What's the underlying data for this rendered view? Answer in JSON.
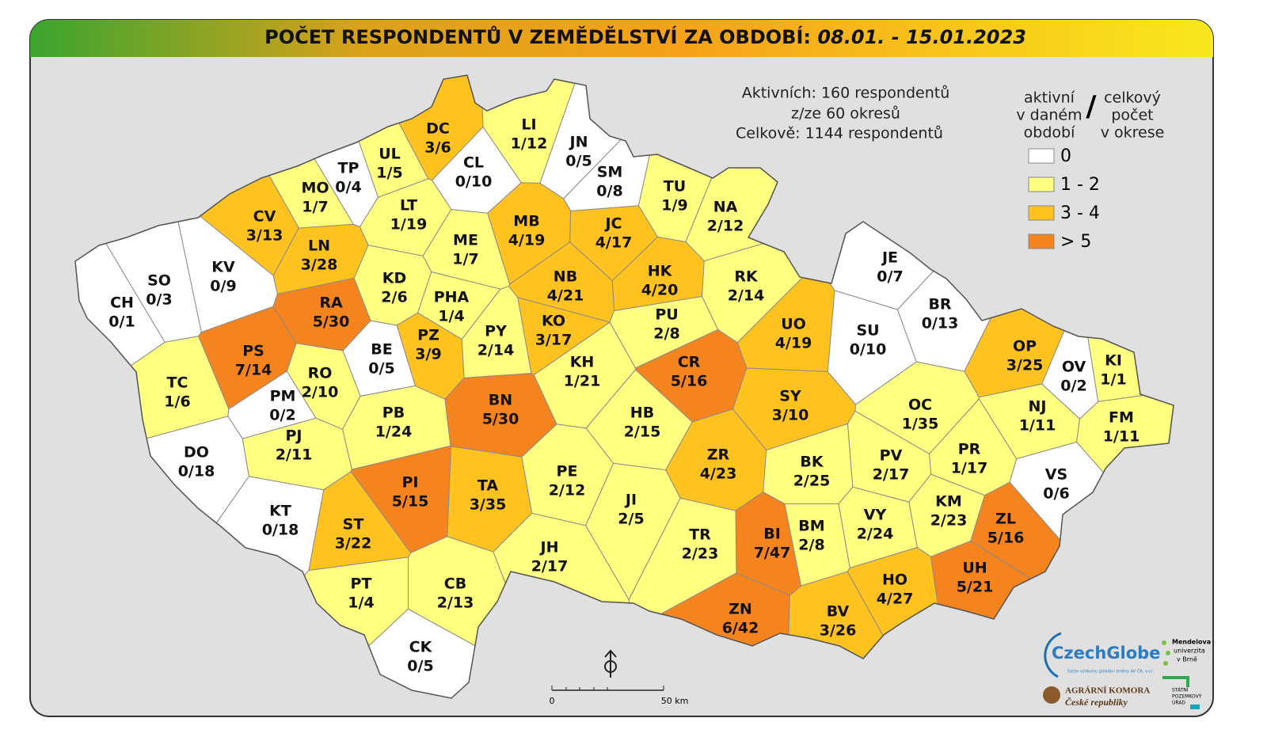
{
  "header": {
    "title": "POČET RESPONDENTŮ V ZEMĚDĚLSTVÍ ZA OBDOBÍ:",
    "period": "08.01. - 15.01.2023"
  },
  "summary": [
    "Aktivních: 160 respondentů",
    "z/ze 60 okresů",
    "Celkově: 1144 respondentů"
  ],
  "legend": {
    "active_heading": [
      "aktivní",
      "v daném",
      "období"
    ],
    "separator": "/",
    "total_heading": [
      "celkový",
      "počet",
      "v okrese"
    ],
    "items": [
      {
        "label": "0",
        "color": "#ffffff"
      },
      {
        "label": "1 - 2",
        "color": "#ffff80"
      },
      {
        "label": "3 - 4",
        "color": "#ffc21f"
      },
      {
        "label": "> 5",
        "color": "#f5841f"
      }
    ]
  },
  "districts": [
    {
      "code": "DC",
      "label": "3/6",
      "color": "#ffc21f"
    },
    {
      "code": "LI",
      "label": "1/12",
      "color": "#ffff80"
    },
    {
      "code": "JN",
      "label": "0/5",
      "color": "#ffffff"
    },
    {
      "code": "CL",
      "label": "0/10",
      "color": "#ffffff"
    },
    {
      "code": "UL",
      "label": "1/5",
      "color": "#ffff80"
    },
    {
      "code": "TP",
      "label": "0/4",
      "color": "#ffffff"
    },
    {
      "code": "MO",
      "label": "1/7",
      "color": "#ffff80"
    },
    {
      "code": "SM",
      "label": "0/8",
      "color": "#ffffff"
    },
    {
      "code": "TU",
      "label": "1/9",
      "color": "#ffff80"
    },
    {
      "code": "NA",
      "label": "2/12",
      "color": "#ffff80"
    },
    {
      "code": "CV",
      "label": "3/13",
      "color": "#ffc21f"
    },
    {
      "code": "LT",
      "label": "1/19",
      "color": "#ffff80"
    },
    {
      "code": "MB",
      "label": "4/19",
      "color": "#ffc21f"
    },
    {
      "code": "JC",
      "label": "4/17",
      "color": "#ffc21f"
    },
    {
      "code": "ME",
      "label": "1/7",
      "color": "#ffff80"
    },
    {
      "code": "LN",
      "label": "3/28",
      "color": "#ffc21f"
    },
    {
      "code": "KV",
      "label": "0/9",
      "color": "#ffffff"
    },
    {
      "code": "SO",
      "label": "0/3",
      "color": "#ffffff"
    },
    {
      "code": "CH",
      "label": "0/1",
      "color": "#ffffff"
    },
    {
      "code": "KD",
      "label": "2/6",
      "color": "#ffff80"
    },
    {
      "code": "PHA",
      "label": "1/4",
      "color": "#ffff80"
    },
    {
      "code": "NB",
      "label": "4/21",
      "color": "#ffc21f"
    },
    {
      "code": "HK",
      "label": "4/20",
      "color": "#ffc21f"
    },
    {
      "code": "RK",
      "label": "2/14",
      "color": "#ffff80"
    },
    {
      "code": "JE",
      "label": "0/7",
      "color": "#ffffff"
    },
    {
      "code": "RA",
      "label": "5/30",
      "color": "#f5841f"
    },
    {
      "code": "KO",
      "label": "3/17",
      "color": "#ffc21f"
    },
    {
      "code": "PU",
      "label": "2/8",
      "color": "#ffff80"
    },
    {
      "code": "UO",
      "label": "4/19",
      "color": "#ffc21f"
    },
    {
      "code": "SU",
      "label": "0/10",
      "color": "#ffffff"
    },
    {
      "code": "BR",
      "label": "0/13",
      "color": "#ffffff"
    },
    {
      "code": "PZ",
      "label": "3/9",
      "color": "#ffc21f"
    },
    {
      "code": "PY",
      "label": "2/14",
      "color": "#ffff80"
    },
    {
      "code": "BE",
      "label": "0/5",
      "color": "#ffffff"
    },
    {
      "code": "PS",
      "label": "7/14",
      "color": "#f5841f"
    },
    {
      "code": "OP",
      "label": "3/25",
      "color": "#ffc21f"
    },
    {
      "code": "KI",
      "label": "1/1",
      "color": "#ffff80"
    },
    {
      "code": "OV",
      "label": "0/2",
      "color": "#ffffff"
    },
    {
      "code": "TC",
      "label": "1/6",
      "color": "#ffff80"
    },
    {
      "code": "RO",
      "label": "2/10",
      "color": "#ffff80"
    },
    {
      "code": "KH",
      "label": "1/21",
      "color": "#ffff80"
    },
    {
      "code": "CR",
      "label": "5/16",
      "color": "#f5841f"
    },
    {
      "code": "BN",
      "label": "5/30",
      "color": "#f5841f"
    },
    {
      "code": "SY",
      "label": "3/10",
      "color": "#ffc21f"
    },
    {
      "code": "OC",
      "label": "1/35",
      "color": "#ffff80"
    },
    {
      "code": "NJ",
      "label": "1/11",
      "color": "#ffff80"
    },
    {
      "code": "FM",
      "label": "1/11",
      "color": "#ffff80"
    },
    {
      "code": "PM",
      "label": "0/2",
      "color": "#ffffff"
    },
    {
      "code": "HB",
      "label": "2/15",
      "color": "#ffff80"
    },
    {
      "code": "PB",
      "label": "1/24",
      "color": "#ffff80"
    },
    {
      "code": "PJ",
      "label": "2/11",
      "color": "#ffff80"
    },
    {
      "code": "DO",
      "label": "0/18",
      "color": "#ffffff"
    },
    {
      "code": "ZR",
      "label": "4/23",
      "color": "#ffc21f"
    },
    {
      "code": "BK",
      "label": "2/25",
      "color": "#ffff80"
    },
    {
      "code": "PV",
      "label": "2/17",
      "color": "#ffff80"
    },
    {
      "code": "PR",
      "label": "1/17",
      "color": "#ffff80"
    },
    {
      "code": "VS",
      "label": "0/6",
      "color": "#ffffff"
    },
    {
      "code": "PE",
      "label": "2/12",
      "color": "#ffff80"
    },
    {
      "code": "PI",
      "label": "5/15",
      "color": "#f5841f"
    },
    {
      "code": "TA",
      "label": "3/35",
      "color": "#ffc21f"
    },
    {
      "code": "JI",
      "label": "2/5",
      "color": "#ffff80"
    },
    {
      "code": "KT",
      "label": "0/18",
      "color": "#ffffff"
    },
    {
      "code": "KM",
      "label": "2/23",
      "color": "#ffff80"
    },
    {
      "code": "ST",
      "label": "3/22",
      "color": "#ffc21f"
    },
    {
      "code": "BI",
      "label": "7/47",
      "color": "#f5841f"
    },
    {
      "code": "BM",
      "label": "2/8",
      "color": "#ffff80"
    },
    {
      "code": "VY",
      "label": "2/24",
      "color": "#ffff80"
    },
    {
      "code": "ZL",
      "label": "5/16",
      "color": "#f5841f"
    },
    {
      "code": "TR",
      "label": "2/23",
      "color": "#ffff80"
    },
    {
      "code": "JH",
      "label": "2/17",
      "color": "#ffff80"
    },
    {
      "code": "UH",
      "label": "5/21",
      "color": "#f5841f"
    },
    {
      "code": "HO",
      "label": "4/27",
      "color": "#ffc21f"
    },
    {
      "code": "PT",
      "label": "1/4",
      "color": "#ffff80"
    },
    {
      "code": "CB",
      "label": "2/13",
      "color": "#ffff80"
    },
    {
      "code": "ZN",
      "label": "6/42",
      "color": "#f5841f"
    },
    {
      "code": "BV",
      "label": "3/26",
      "color": "#ffc21f"
    },
    {
      "code": "CK",
      "label": "0/5",
      "color": "#ffffff"
    }
  ],
  "scale": {
    "labels": [
      "0",
      "50 km"
    ]
  },
  "logos": {
    "czechglobe": "CzechGlobe",
    "czechglobe_sub": "Ústav výzkumu globální změny AV ČR, v.v.i.",
    "mendel": [
      "Mendelova",
      "univerzita",
      "v Brně"
    ],
    "agrarni": [
      "AGRÁRNÍ KOMORA",
      "České republiky"
    ],
    "spu": [
      "STÁTNÍ",
      "POZEMKOVÝ",
      "ÚŘAD"
    ]
  }
}
